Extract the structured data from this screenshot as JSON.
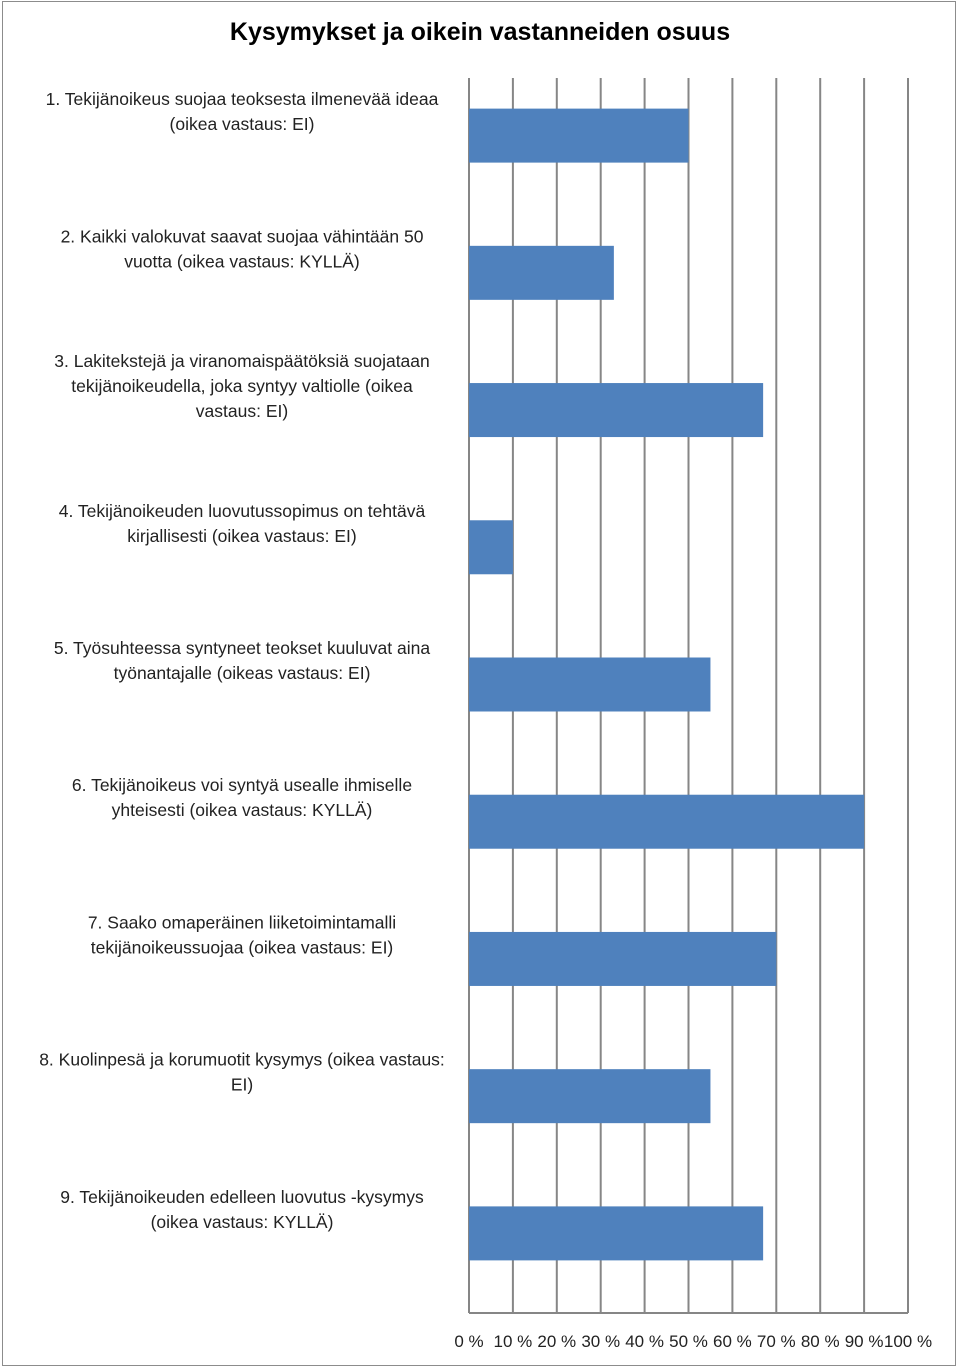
{
  "chart_data": {
    "type": "bar",
    "orientation": "horizontal",
    "title": "Kysymykset ja oikein vastanneiden osuus",
    "categories": [
      [
        "1. Tekijänoikeus suojaa teoksesta ilmenevää ideaa",
        "(oikea vastaus: EI)"
      ],
      [
        "2. Kaikki valokuvat saavat suojaa vähintään 50",
        "vuotta (oikea vastaus: KYLLÄ)"
      ],
      [
        "3. Lakitekstejä ja viranomaispäätöksiä suojataan",
        "tekijänoikeudella, joka syntyy valtiolle (oikea",
        "vastaus: EI)"
      ],
      [
        "4. Tekijänoikeuden luovutussopimus on tehtävä",
        "kirjallisesti (oikea vastaus: EI)"
      ],
      [
        "5. Työsuhteessa syntyneet teokset kuuluvat aina",
        "työnantajalle (oikeas vastaus: EI)"
      ],
      [
        "6. Tekijänoikeus voi syntyä usealle ihmiselle",
        "yhteisesti (oikea vastaus: KYLLÄ)"
      ],
      [
        "7. Saako omaperäinen liiketoimintamalli",
        "tekijänoikeussuojaa (oikea vastaus: EI)"
      ],
      [
        "8. Kuolinpesä ja korumuotit kysymys (oikea vastaus:",
        "EI)"
      ],
      [
        "9. Tekijänoikeuden edelleen luovutus -kysymys",
        "(oikea vastaus: KYLLÄ)"
      ]
    ],
    "values": [
      50,
      33,
      67,
      10,
      55,
      90,
      70,
      55,
      67
    ],
    "xlim": [
      0,
      100
    ],
    "xticks": [
      "0 %",
      "10 %",
      "20 %",
      "30 %",
      "40 %",
      "50 %",
      "60 %",
      "70 %",
      "80 %",
      "90 %",
      "100 %"
    ],
    "grid": true,
    "legend": "none",
    "bar_color": "#4f81bd",
    "grid_color": "#868686"
  }
}
